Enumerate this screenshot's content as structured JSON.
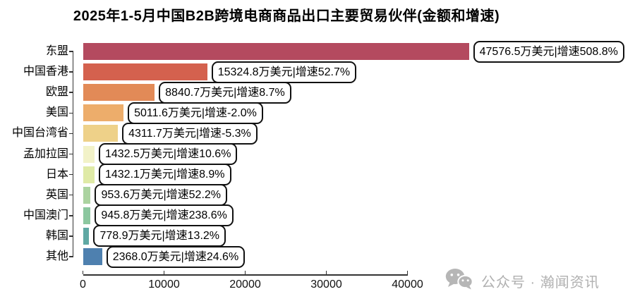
{
  "title": "2025年1-5月中国B2B跨境电商商品出口主要贸易伙伴(金额和增速)",
  "watermark": {
    "icon": "wechat-icon",
    "text": "公众号 · 瀚闻资讯",
    "color": "#b0b0b0"
  },
  "chart_data": {
    "type": "bar",
    "orientation": "horizontal",
    "title": "2025年1-5月中国B2B跨境电商商品出口主要贸易伙伴(金额和增速)",
    "unit": "万美元",
    "categories": [
      "东盟",
      "中国香港",
      "欧盟",
      "美国",
      "中国台湾省",
      "孟加拉国",
      "日本",
      "英国",
      "中国澳门",
      "韩国",
      "其他"
    ],
    "series": [
      {
        "name": "金额(万美元)",
        "values": [
          47576.5,
          15324.8,
          8840.7,
          5011.6,
          4311.7,
          1432.5,
          1432.1,
          953.6,
          945.8,
          778.9,
          2368.0
        ]
      },
      {
        "name": "增速(%)",
        "values": [
          508.8,
          52.7,
          8.7,
          -2.0,
          -5.3,
          10.6,
          8.9,
          52.2,
          238.6,
          13.2,
          24.6
        ]
      }
    ],
    "bar_labels": [
      "47576.5万美元|增速508.8%",
      "15324.8万美元|增速52.7%",
      "8840.7万美元|增速8.7%",
      "5011.6万美元|增速-2.0%",
      "4311.7万美元|增速-5.3%",
      "1432.5万美元|增速10.6%",
      "1432.1万美元|增速8.9%",
      "953.6万美元|增速52.2%",
      "945.8万美元|增速238.6%",
      "778.9万美元|增速13.2%",
      "2368.0万美元|增速24.6%"
    ],
    "bar_colors": [
      "#b44a5f",
      "#d4614e",
      "#e28a57",
      "#edad6b",
      "#eed189",
      "#f2f2c8",
      "#dfeaa6",
      "#abd3a0",
      "#8cc79f",
      "#5fa8a3",
      "#4e80af"
    ],
    "x_ticks": [
      0,
      10000,
      20000,
      30000,
      40000
    ],
    "xlim": [
      0,
      40000
    ],
    "grid": false,
    "legend": "none",
    "label_box_style": "white rounded rect, black border"
  }
}
